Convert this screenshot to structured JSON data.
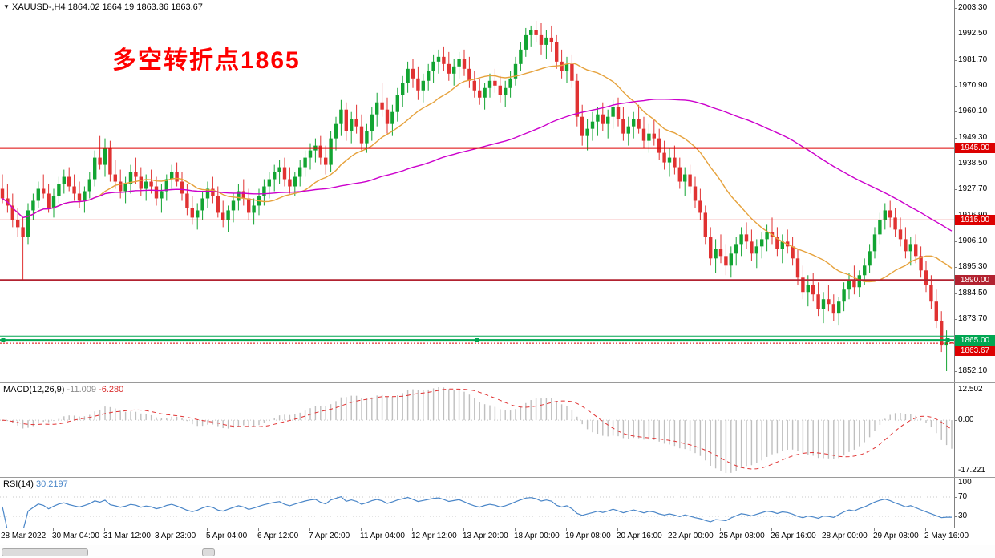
{
  "header": {
    "dropdown_icon": "▼",
    "symbol_timeframe": "XAUUSD-,H4",
    "open": "1864.02",
    "high": "1864.19",
    "low": "1863.36",
    "close": "1863.67"
  },
  "annotation": {
    "text": "多空转折点1865"
  },
  "colors": {
    "bull": "#12a432",
    "bear": "#e03232",
    "ma_fast": "#e6a23c",
    "ma_slow": "#cc00cc",
    "macd_hist": "#bfbfbf",
    "macd_signal": "#e03232",
    "rsi_line": "#4a86c8",
    "level_red": "#dd0000",
    "level_darkred": "#b22230",
    "level_green": "#00a651",
    "current_price": "#dd0000",
    "grid_dotted": "#c8c8c8"
  },
  "chart_data": {
    "type": "candlestick",
    "title": "XAUUSD- H4",
    "legend_position": "top-left",
    "grid": false,
    "y_axis_labels": [
      "2003.30",
      "1992.50",
      "1981.70",
      "1970.90",
      "1960.10",
      "1949.30",
      "1938.50",
      "1927.70",
      "1916.90",
      "1906.10",
      "1895.30",
      "1884.50",
      "1873.70",
      "1862.90",
      "1852.10"
    ],
    "x_axis_labels": [
      "28 Mar 2022",
      "30 Mar 04:00",
      "31 Mar 12:00",
      "3 Apr 23:00",
      "5 Apr 04:00",
      "6 Apr 12:00",
      "7 Apr 20:00",
      "11 Apr 04:00",
      "12 Apr 12:00",
      "13 Apr 20:00",
      "18 Apr 00:00",
      "19 Apr 08:00",
      "20 Apr 16:00",
      "22 Apr 00:00",
      "25 Apr 08:00",
      "26 Apr 16:00",
      "28 Apr 00:00",
      "29 Apr 08:00",
      "2 May 16:00"
    ],
    "x_label_interval": 10,
    "price_range": [
      1849,
      2006
    ],
    "candles": [
      [
        1928,
        1934,
        1922,
        1924
      ],
      [
        1924,
        1930,
        1918,
        1921
      ],
      [
        1921,
        1926,
        1912,
        1915
      ],
      [
        1915,
        1920,
        1908,
        1912
      ],
      [
        1912,
        1916,
        1890,
        1908
      ],
      [
        1908,
        1922,
        1905,
        1919
      ],
      [
        1919,
        1926,
        1915,
        1923
      ],
      [
        1923,
        1931,
        1920,
        1928
      ],
      [
        1928,
        1934,
        1924,
        1926
      ],
      [
        1926,
        1930,
        1918,
        1920
      ],
      [
        1920,
        1928,
        1916,
        1925
      ],
      [
        1925,
        1933,
        1922,
        1930
      ],
      [
        1930,
        1936,
        1926,
        1933
      ],
      [
        1933,
        1937,
        1927,
        1929
      ],
      [
        1929,
        1934,
        1923,
        1926
      ],
      [
        1926,
        1931,
        1920,
        1923
      ],
      [
        1923,
        1929,
        1918,
        1927
      ],
      [
        1927,
        1935,
        1924,
        1932
      ],
      [
        1932,
        1944,
        1929,
        1941
      ],
      [
        1941,
        1950,
        1936,
        1938
      ],
      [
        1938,
        1949,
        1933,
        1945
      ],
      [
        1945,
        1948,
        1931,
        1934
      ],
      [
        1934,
        1940,
        1928,
        1931
      ],
      [
        1931,
        1936,
        1924,
        1927
      ],
      [
        1927,
        1933,
        1922,
        1930
      ],
      [
        1930,
        1938,
        1926,
        1935
      ],
      [
        1935,
        1941,
        1930,
        1933
      ],
      [
        1933,
        1937,
        1925,
        1928
      ],
      [
        1928,
        1934,
        1923,
        1931
      ],
      [
        1931,
        1936,
        1926,
        1929
      ],
      [
        1929,
        1933,
        1921,
        1924
      ],
      [
        1924,
        1930,
        1918,
        1927
      ],
      [
        1927,
        1934,
        1923,
        1932
      ],
      [
        1932,
        1938,
        1928,
        1935
      ],
      [
        1935,
        1939,
        1929,
        1931
      ],
      [
        1931,
        1935,
        1923,
        1926
      ],
      [
        1926,
        1930,
        1917,
        1920
      ],
      [
        1920,
        1925,
        1913,
        1916
      ],
      [
        1916,
        1922,
        1911,
        1919
      ],
      [
        1919,
        1927,
        1915,
        1924
      ],
      [
        1924,
        1931,
        1920,
        1928
      ],
      [
        1928,
        1933,
        1922,
        1925
      ],
      [
        1925,
        1929,
        1916,
        1918
      ],
      [
        1918,
        1923,
        1912,
        1915
      ],
      [
        1915,
        1921,
        1910,
        1919
      ],
      [
        1919,
        1926,
        1914,
        1923
      ],
      [
        1923,
        1930,
        1919,
        1927
      ],
      [
        1927,
        1932,
        1921,
        1924
      ],
      [
        1924,
        1928,
        1915,
        1918
      ],
      [
        1918,
        1924,
        1913,
        1921
      ],
      [
        1921,
        1928,
        1917,
        1925
      ],
      [
        1925,
        1932,
        1921,
        1929
      ],
      [
        1929,
        1935,
        1924,
        1932
      ],
      [
        1932,
        1938,
        1927,
        1935
      ],
      [
        1935,
        1940,
        1930,
        1937
      ],
      [
        1937,
        1941,
        1929,
        1932
      ],
      [
        1932,
        1937,
        1926,
        1929
      ],
      [
        1929,
        1935,
        1925,
        1933
      ],
      [
        1933,
        1940,
        1929,
        1937
      ],
      [
        1937,
        1944,
        1933,
        1941
      ],
      [
        1941,
        1947,
        1936,
        1944
      ],
      [
        1944,
        1949,
        1939,
        1946
      ],
      [
        1946,
        1950,
        1938,
        1941
      ],
      [
        1941,
        1946,
        1934,
        1938
      ],
      [
        1938,
        1952,
        1935,
        1949
      ],
      [
        1949,
        1958,
        1944,
        1955
      ],
      [
        1955,
        1965,
        1950,
        1961
      ],
      [
        1961,
        1964,
        1948,
        1952
      ],
      [
        1952,
        1960,
        1947,
        1957
      ],
      [
        1957,
        1963,
        1951,
        1954
      ],
      [
        1954,
        1959,
        1944,
        1947
      ],
      [
        1947,
        1955,
        1943,
        1952
      ],
      [
        1952,
        1962,
        1948,
        1959
      ],
      [
        1959,
        1968,
        1954,
        1964
      ],
      [
        1964,
        1972,
        1958,
        1961
      ],
      [
        1961,
        1966,
        1951,
        1955
      ],
      [
        1955,
        1963,
        1950,
        1960
      ],
      [
        1960,
        1970,
        1956,
        1967
      ],
      [
        1967,
        1975,
        1962,
        1972
      ],
      [
        1972,
        1981,
        1968,
        1978
      ],
      [
        1978,
        1982,
        1970,
        1974
      ],
      [
        1974,
        1979,
        1965,
        1969
      ],
      [
        1969,
        1976,
        1964,
        1973
      ],
      [
        1973,
        1980,
        1969,
        1977
      ],
      [
        1977,
        1984,
        1972,
        1981
      ],
      [
        1981,
        1986,
        1976,
        1983
      ],
      [
        1983,
        1987,
        1977,
        1980
      ],
      [
        1980,
        1985,
        1973,
        1976
      ],
      [
        1976,
        1982,
        1971,
        1979
      ],
      [
        1979,
        1985,
        1974,
        1982
      ],
      [
        1982,
        1986,
        1975,
        1978
      ],
      [
        1978,
        1983,
        1970,
        1973
      ],
      [
        1973,
        1977,
        1966,
        1969
      ],
      [
        1969,
        1974,
        1963,
        1966
      ],
      [
        1966,
        1972,
        1961,
        1970
      ],
      [
        1970,
        1976,
        1966,
        1973
      ],
      [
        1973,
        1978,
        1968,
        1971
      ],
      [
        1971,
        1975,
        1964,
        1967
      ],
      [
        1967,
        1973,
        1962,
        1970
      ],
      [
        1970,
        1977,
        1966,
        1974
      ],
      [
        1974,
        1983,
        1971,
        1980
      ],
      [
        1980,
        1989,
        1977,
        1986
      ],
      [
        1986,
        1995,
        1983,
        1992
      ],
      [
        1992,
        1996,
        1987,
        1994
      ],
      [
        1994,
        1998,
        1989,
        1992
      ],
      [
        1992,
        1997,
        1984,
        1988
      ],
      [
        1988,
        1994,
        1982,
        1991
      ],
      [
        1991,
        1996,
        1985,
        1989
      ],
      [
        1989,
        1992,
        1978,
        1981
      ],
      [
        1981,
        1986,
        1974,
        1977
      ],
      [
        1977,
        1983,
        1972,
        1980
      ],
      [
        1980,
        1984,
        1970,
        1973
      ],
      [
        1973,
        1976,
        1954,
        1958
      ],
      [
        1958,
        1963,
        1946,
        1950
      ],
      [
        1950,
        1957,
        1944,
        1953
      ],
      [
        1953,
        1960,
        1948,
        1956
      ],
      [
        1956,
        1962,
        1950,
        1959
      ],
      [
        1959,
        1964,
        1952,
        1955
      ],
      [
        1955,
        1961,
        1949,
        1958
      ],
      [
        1958,
        1965,
        1953,
        1962
      ],
      [
        1962,
        1966,
        1954,
        1957
      ],
      [
        1957,
        1962,
        1948,
        1951
      ],
      [
        1951,
        1958,
        1946,
        1954
      ],
      [
        1954,
        1960,
        1949,
        1957
      ],
      [
        1957,
        1963,
        1951,
        1953
      ],
      [
        1953,
        1958,
        1945,
        1948
      ],
      [
        1948,
        1955,
        1943,
        1951
      ],
      [
        1951,
        1957,
        1946,
        1949
      ],
      [
        1949,
        1953,
        1940,
        1943
      ],
      [
        1943,
        1948,
        1936,
        1939
      ],
      [
        1939,
        1945,
        1933,
        1941
      ],
      [
        1941,
        1946,
        1934,
        1937
      ],
      [
        1937,
        1941,
        1928,
        1931
      ],
      [
        1931,
        1937,
        1925,
        1934
      ],
      [
        1934,
        1938,
        1926,
        1929
      ],
      [
        1929,
        1933,
        1920,
        1923
      ],
      [
        1923,
        1928,
        1915,
        1918
      ],
      [
        1918,
        1921,
        1905,
        1908
      ],
      [
        1908,
        1912,
        1896,
        1899
      ],
      [
        1899,
        1907,
        1893,
        1903
      ],
      [
        1903,
        1909,
        1897,
        1900
      ],
      [
        1900,
        1905,
        1892,
        1896
      ],
      [
        1896,
        1904,
        1891,
        1901
      ],
      [
        1901,
        1908,
        1896,
        1905
      ],
      [
        1905,
        1912,
        1900,
        1909
      ],
      [
        1909,
        1914,
        1903,
        1906
      ],
      [
        1906,
        1911,
        1898,
        1901
      ],
      [
        1901,
        1907,
        1895,
        1904
      ],
      [
        1904,
        1910,
        1899,
        1907
      ],
      [
        1907,
        1913,
        1902,
        1910
      ],
      [
        1910,
        1916,
        1905,
        1908
      ],
      [
        1908,
        1912,
        1900,
        1903
      ],
      [
        1903,
        1909,
        1897,
        1906
      ],
      [
        1906,
        1911,
        1901,
        1904
      ],
      [
        1904,
        1908,
        1896,
        1899
      ],
      [
        1899,
        1903,
        1888,
        1891
      ],
      [
        1891,
        1896,
        1882,
        1885
      ],
      [
        1885,
        1892,
        1879,
        1888
      ],
      [
        1888,
        1893,
        1881,
        1884
      ],
      [
        1884,
        1889,
        1875,
        1878
      ],
      [
        1878,
        1885,
        1872,
        1882
      ],
      [
        1882,
        1888,
        1877,
        1880
      ],
      [
        1880,
        1884,
        1873,
        1876
      ],
      [
        1876,
        1883,
        1871,
        1881
      ],
      [
        1881,
        1889,
        1877,
        1886
      ],
      [
        1886,
        1893,
        1882,
        1890
      ],
      [
        1890,
        1896,
        1884,
        1887
      ],
      [
        1887,
        1894,
        1883,
        1892
      ],
      [
        1892,
        1899,
        1888,
        1896
      ],
      [
        1896,
        1905,
        1893,
        1902
      ],
      [
        1902,
        1912,
        1899,
        1909
      ],
      [
        1909,
        1918,
        1905,
        1915
      ],
      [
        1915,
        1922,
        1911,
        1919
      ],
      [
        1919,
        1923,
        1912,
        1916
      ],
      [
        1916,
        1920,
        1908,
        1911
      ],
      [
        1911,
        1916,
        1904,
        1907
      ],
      [
        1907,
        1912,
        1899,
        1902
      ],
      [
        1902,
        1908,
        1896,
        1905
      ],
      [
        1905,
        1909,
        1897,
        1900
      ],
      [
        1900,
        1904,
        1891,
        1894
      ],
      [
        1894,
        1898,
        1885,
        1888
      ],
      [
        1888,
        1892,
        1878,
        1881
      ],
      [
        1881,
        1886,
        1870,
        1873
      ],
      [
        1873,
        1877,
        1860,
        1863
      ],
      [
        1863,
        1869,
        1852,
        1864
      ],
      [
        1864.02,
        1864.19,
        1863.36,
        1863.67
      ]
    ],
    "overlays": [
      {
        "name": "ma-fast",
        "type": "sma",
        "period": 18,
        "color_key": "ma_fast"
      },
      {
        "name": "ma-slow",
        "type": "sma",
        "period": 70,
        "color_key": "ma_slow"
      }
    ],
    "levels": [
      {
        "price": 1945.0,
        "label": "1945.00",
        "width": 2,
        "style": "solid",
        "color_key": "level_red",
        "box": true,
        "handles": false
      },
      {
        "price": 1915.0,
        "label": "1915.00",
        "width": 1,
        "style": "solid",
        "color_key": "level_red",
        "box": true,
        "handles": false
      },
      {
        "price": 1890.0,
        "label": "1890.00",
        "width": 2,
        "style": "solid",
        "color_key": "level_darkred",
        "box": true,
        "handles": false
      },
      {
        "price": 1866.6,
        "label": "",
        "width": 1,
        "style": "solid",
        "color_key": "level_green",
        "box": false,
        "handles": false
      },
      {
        "price": 1865.0,
        "label": "1865.00",
        "width": 2,
        "style": "solid",
        "color_key": "level_green",
        "box": true,
        "handles": true
      },
      {
        "price": 1863.67,
        "label": "1863.67",
        "width": 1,
        "style": "dotted",
        "color_key": "current_price",
        "box": true,
        "handles": false
      }
    ],
    "macd": {
      "label": "MACD(12,26,9)",
      "main_value": "-11.009",
      "signal_value": "-6.280",
      "fast": 12,
      "slow": 26,
      "signal": 9,
      "axis_top": "12.502",
      "axis_zero": "0.00",
      "axis_bottom": "-17.221"
    },
    "rsi": {
      "label": "RSI(14)",
      "value": "30.2197",
      "period": 14,
      "axis_labels": [
        100,
        70,
        30
      ],
      "levels": [
        70,
        30
      ]
    }
  }
}
